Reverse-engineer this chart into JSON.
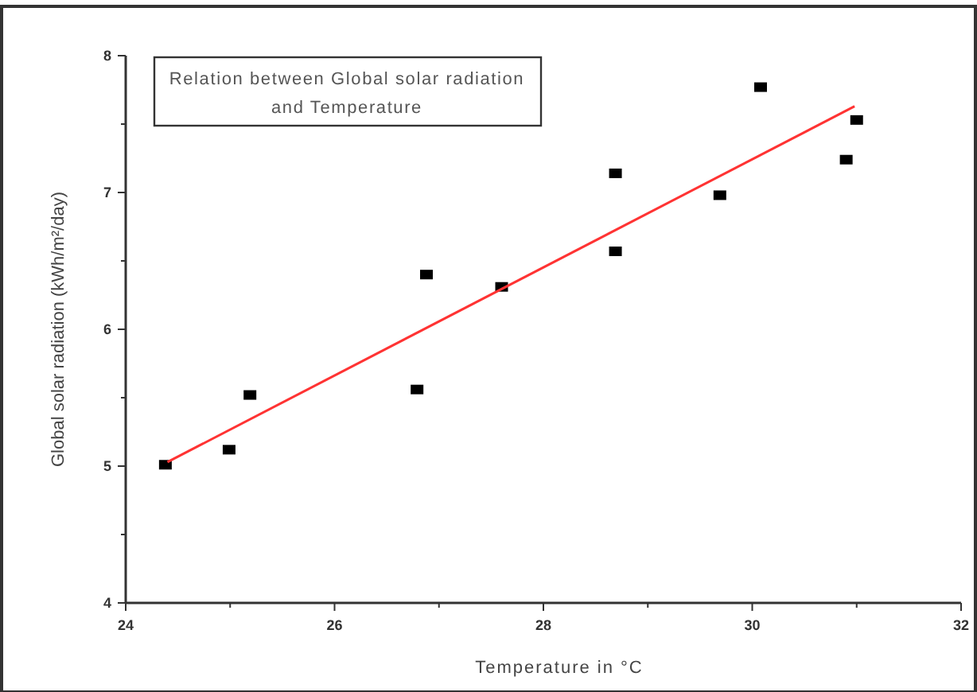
{
  "chart_data": {
    "type": "scatter",
    "title": "Relation between Global solar radiation and Temperature",
    "xlabel": "Temperature in °C",
    "ylabel": "Global solar radiation (kWh/m²/day)",
    "xlim": [
      24,
      32
    ],
    "xticks": [
      24,
      {
        "value": 25,
        "label": null
      },
      26,
      {
        "value": 27,
        "label": null
      },
      28,
      {
        "value": 29,
        "label": null
      },
      30,
      {
        "value": 31,
        "label": null
      },
      32
    ],
    "ylim": [
      4,
      8
    ],
    "yticks": [
      4,
      {
        "value": 4.5,
        "label": null
      },
      5,
      {
        "value": 5.5,
        "label": null
      },
      6,
      {
        "value": 6.5,
        "label": null
      },
      7,
      {
        "value": 7.5,
        "label": null
      },
      8
    ],
    "series": [
      {
        "marker": "square",
        "color": "#000000",
        "x": [
          24.38,
          24.99,
          25.19,
          26.79,
          26.88,
          27.6,
          28.69,
          28.69,
          29.69,
          30.08,
          30.9,
          31.0
        ],
        "values": [
          5.01,
          5.12,
          5.52,
          5.56,
          6.4,
          6.31,
          6.57,
          7.14,
          6.98,
          7.77,
          7.24,
          7.53
        ]
      },
      {
        "type": "line",
        "color": "#ff3333",
        "x": [
          24.4,
          30.98
        ],
        "values": [
          5.03,
          7.63
        ]
      }
    ]
  }
}
